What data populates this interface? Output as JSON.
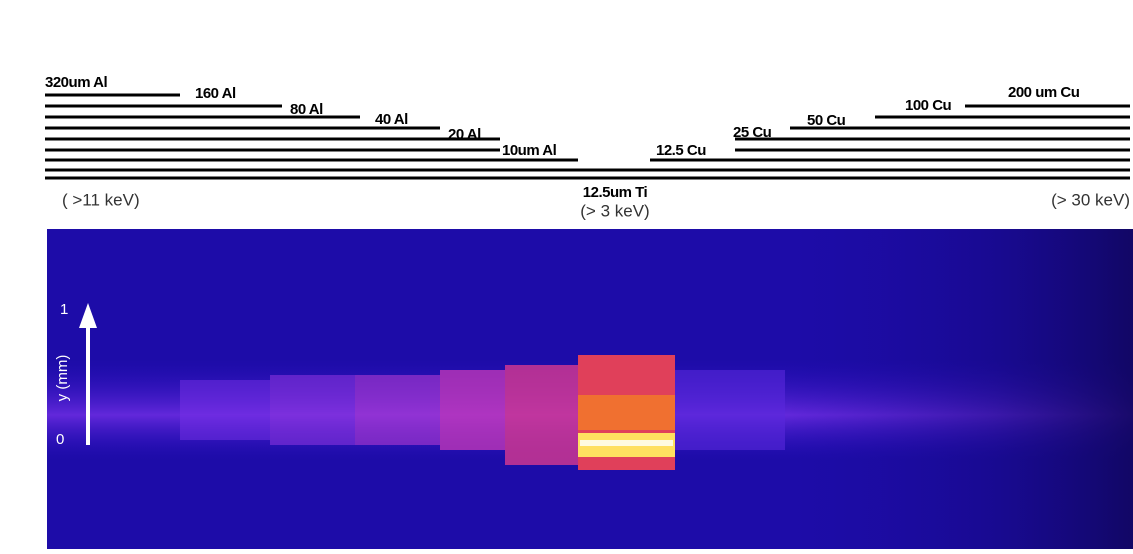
{
  "filters": {
    "left": [
      "320um Al",
      "160 Al",
      "80 Al",
      "40 Al",
      "20 Al",
      "10um Al"
    ],
    "right": [
      "200 um Cu",
      "100 Cu",
      "50 Cu",
      "25 Cu",
      "12.5 Cu"
    ],
    "center": "12.5um Ti",
    "left_energy": "( >11 keV)",
    "center_energy": "(> 3 keV)",
    "right_energy": "(> 30 keV)"
  },
  "image": {
    "axis_label": "y (mm)",
    "tick_top": "1",
    "tick_bottom": "0"
  }
}
